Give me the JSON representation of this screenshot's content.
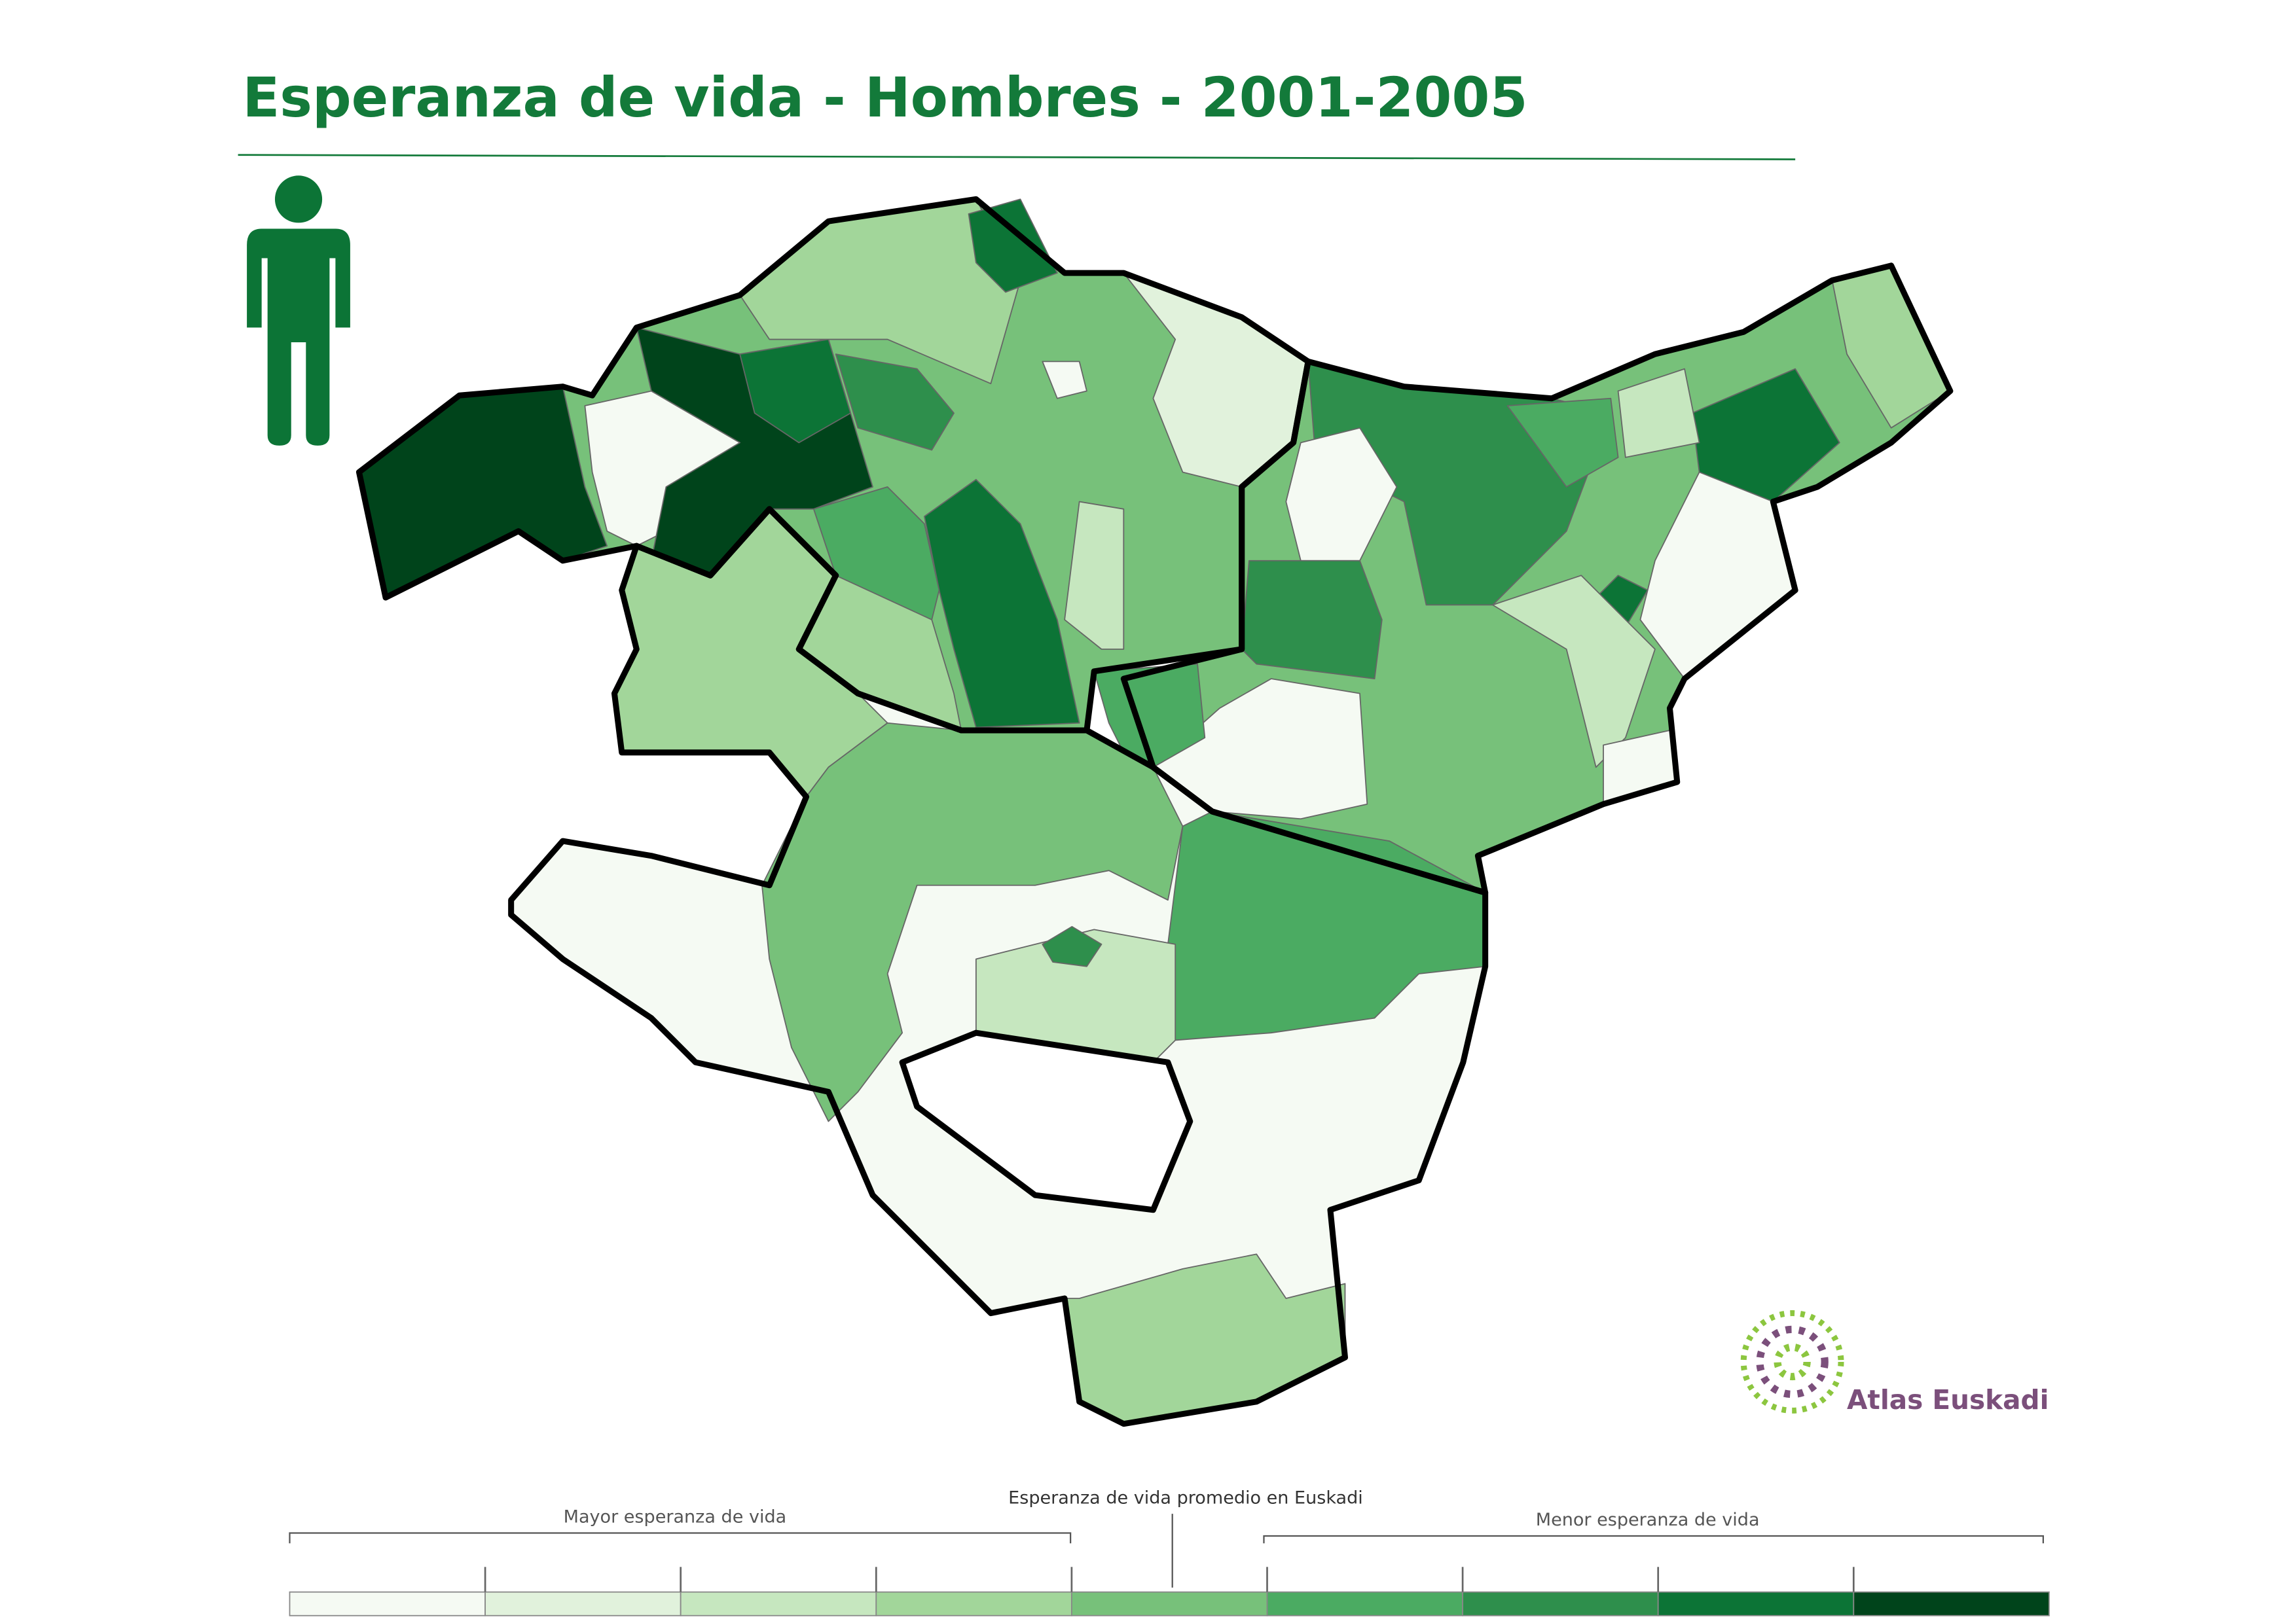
{
  "header": {
    "title": "Esperanza de vida - Hombres - 2001-2005"
  },
  "legend": {
    "left_label": "Mayor esperanza de vida",
    "center_label": "Esperanza de vida promedio en Euskadi",
    "right_label": "Menor esperanza de vida",
    "colors": [
      "#f5faf3",
      "#e1f2dc",
      "#c6e7bf",
      "#a2d69a",
      "#77c17a",
      "#4bab62",
      "#2e8f4c",
      "#0c7436",
      "#00441b"
    ]
  },
  "logo": {
    "text": "Atlas Euskadi"
  }
}
